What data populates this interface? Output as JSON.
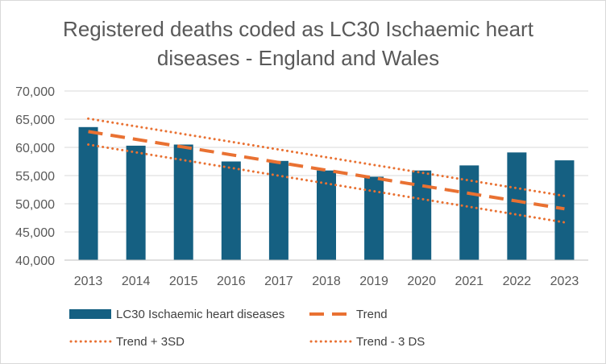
{
  "chart_data": {
    "type": "bar",
    "title": "Registered deaths coded as LC30 Ischaemic heart diseases - England and Wales",
    "categories": [
      "2013",
      "2014",
      "2015",
      "2016",
      "2017",
      "2018",
      "2019",
      "2020",
      "2021",
      "2022",
      "2023"
    ],
    "ylim": [
      40000,
      70000
    ],
    "yticks": [
      40000,
      45000,
      50000,
      55000,
      60000,
      65000,
      70000
    ],
    "ytick_labels": [
      "40,000",
      "45,000",
      "50,000",
      "55,000",
      "60,000",
      "65,000",
      "70,000"
    ],
    "xlabel": "",
    "ylabel": "",
    "grid": true,
    "legend_position": "bottom",
    "series": [
      {
        "name": "LC30 Ischaemic heart diseases",
        "kind": "bar",
        "color": "#156082",
        "values": [
          63600,
          60300,
          60500,
          57500,
          57600,
          55900,
          54800,
          55900,
          56800,
          59100,
          57700
        ]
      },
      {
        "name": "Trend",
        "kind": "line-dashed",
        "color": "#E97132",
        "values": [
          62800,
          61430,
          60060,
          58690,
          57320,
          55950,
          54580,
          53210,
          51840,
          50470,
          49100
        ]
      },
      {
        "name": "Trend + 3SD",
        "kind": "line-dotted",
        "color": "#E97132",
        "values": [
          65100,
          63730,
          62360,
          60990,
          59620,
          58250,
          56880,
          55510,
          54140,
          52770,
          51400
        ]
      },
      {
        "name": "Trend - 3 DS",
        "kind": "line-dotted",
        "color": "#E97132",
        "values": [
          60500,
          59120,
          57740,
          56360,
          54980,
          53600,
          52220,
          50840,
          49460,
          48080,
          46700
        ]
      }
    ]
  }
}
